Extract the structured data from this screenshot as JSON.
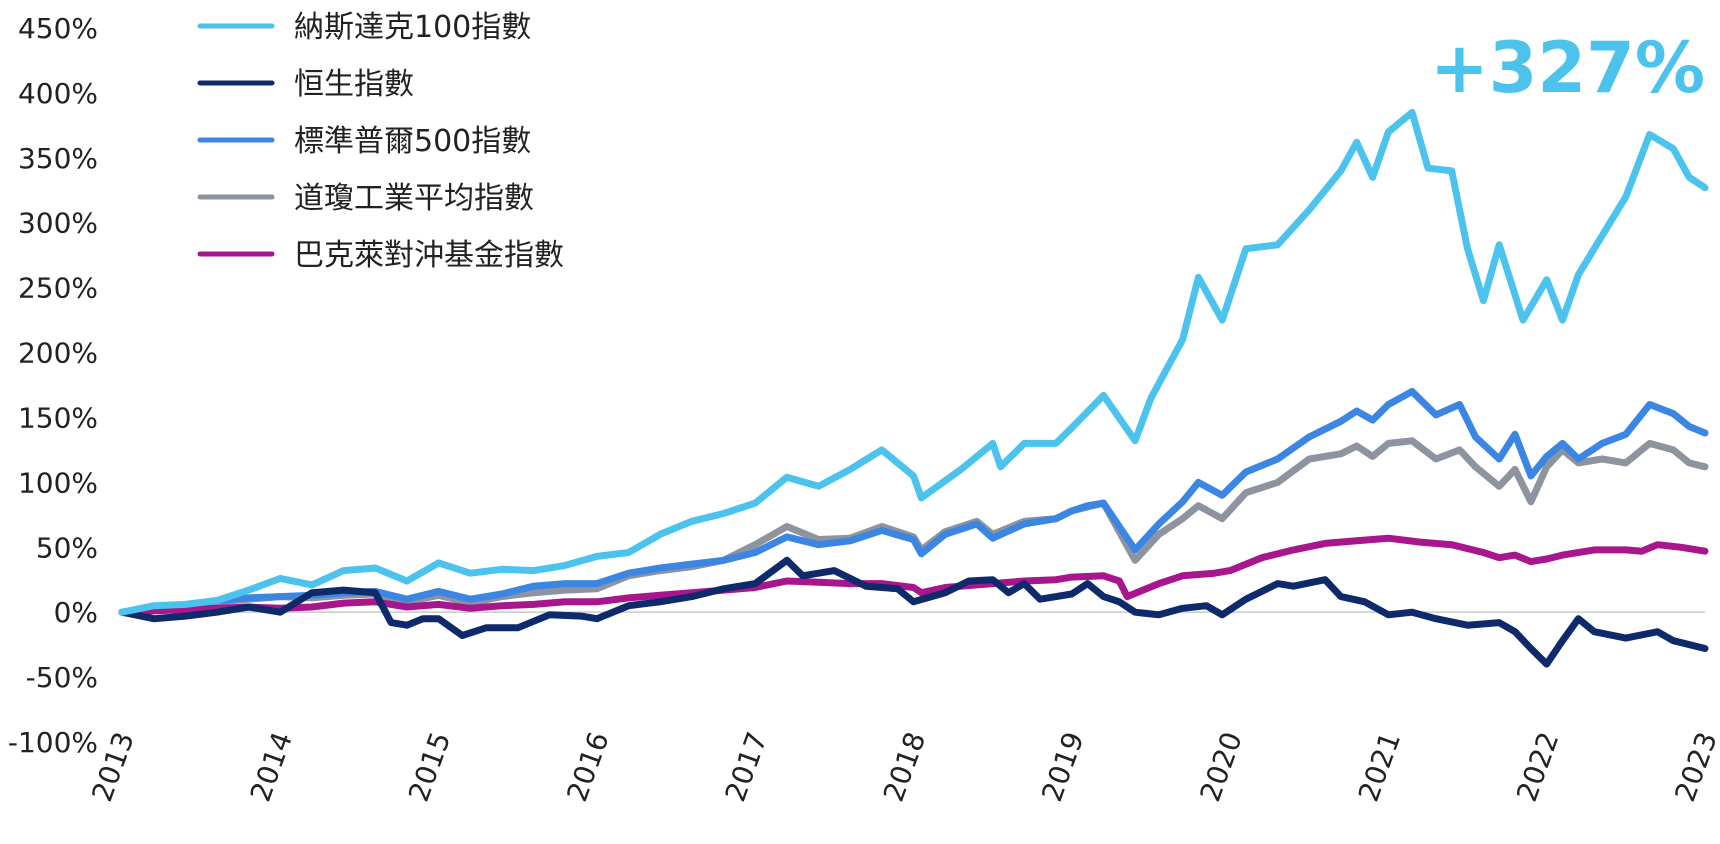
{
  "chart_data": {
    "type": "line",
    "title": "",
    "xlabel": "",
    "ylabel": "",
    "ylim": [
      -100,
      450
    ],
    "xlim": [
      2013,
      2023
    ],
    "y_ticks": [
      "450%",
      "400%",
      "350%",
      "300%",
      "250%",
      "200%",
      "150%",
      "100%",
      "50%",
      "0%",
      "-50%",
      "-100%"
    ],
    "x_ticks": [
      "2013",
      "2014",
      "2015",
      "2016",
      "2017",
      "2018",
      "2019",
      "2020",
      "2021",
      "2022",
      "2023"
    ],
    "annotation": "+327%",
    "legend_location": "top-left",
    "series": [
      {
        "name": "納斯達克100指數",
        "color": "#4CC3ED",
        "points": [
          [
            2013.0,
            0
          ],
          [
            2013.2,
            5
          ],
          [
            2013.4,
            6
          ],
          [
            2013.6,
            9
          ],
          [
            2013.8,
            17
          ],
          [
            2014.0,
            26
          ],
          [
            2014.2,
            21
          ],
          [
            2014.4,
            32
          ],
          [
            2014.6,
            34
          ],
          [
            2014.8,
            24
          ],
          [
            2015.0,
            38
          ],
          [
            2015.2,
            30
          ],
          [
            2015.4,
            33
          ],
          [
            2015.6,
            32
          ],
          [
            2015.8,
            36
          ],
          [
            2016.0,
            43
          ],
          [
            2016.2,
            46
          ],
          [
            2016.4,
            60
          ],
          [
            2016.6,
            70
          ],
          [
            2016.8,
            76
          ],
          [
            2017.0,
            84
          ],
          [
            2017.2,
            104
          ],
          [
            2017.4,
            97
          ],
          [
            2017.6,
            110
          ],
          [
            2017.8,
            125
          ],
          [
            2018.0,
            105
          ],
          [
            2018.05,
            88
          ],
          [
            2018.3,
            110
          ],
          [
            2018.5,
            130
          ],
          [
            2018.55,
            112
          ],
          [
            2018.7,
            130
          ],
          [
            2018.9,
            130
          ],
          [
            2019.0,
            142
          ],
          [
            2019.2,
            167
          ],
          [
            2019.4,
            132
          ],
          [
            2019.5,
            165
          ],
          [
            2019.7,
            210
          ],
          [
            2019.8,
            258
          ],
          [
            2019.95,
            225
          ],
          [
            2020.1,
            280
          ],
          [
            2020.3,
            283
          ],
          [
            2020.5,
            310
          ],
          [
            2020.7,
            340
          ],
          [
            2020.8,
            362
          ],
          [
            2020.9,
            335
          ],
          [
            2021.0,
            370
          ],
          [
            2021.15,
            385
          ],
          [
            2021.25,
            342
          ],
          [
            2021.4,
            340
          ],
          [
            2021.5,
            280
          ],
          [
            2021.6,
            240
          ],
          [
            2021.7,
            283
          ],
          [
            2021.85,
            225
          ],
          [
            2022.0,
            256
          ],
          [
            2022.1,
            225
          ],
          [
            2022.2,
            260
          ],
          [
            2022.35,
            290
          ],
          [
            2022.5,
            320
          ],
          [
            2022.65,
            368
          ],
          [
            2022.8,
            357
          ],
          [
            2022.9,
            335
          ],
          [
            2023.0,
            327
          ]
        ]
      },
      {
        "name": "恒生指數",
        "color": "#0F2A6B",
        "points": [
          [
            2013.0,
            0
          ],
          [
            2013.2,
            -5
          ],
          [
            2013.4,
            -3
          ],
          [
            2013.6,
            0
          ],
          [
            2013.8,
            4
          ],
          [
            2014.0,
            0
          ],
          [
            2014.2,
            15
          ],
          [
            2014.4,
            17
          ],
          [
            2014.6,
            15
          ],
          [
            2014.7,
            -8
          ],
          [
            2014.8,
            -10
          ],
          [
            2014.9,
            -5
          ],
          [
            2015.0,
            -5
          ],
          [
            2015.15,
            -18
          ],
          [
            2015.3,
            -12
          ],
          [
            2015.5,
            -12
          ],
          [
            2015.7,
            -2
          ],
          [
            2015.9,
            -3
          ],
          [
            2016.0,
            -5
          ],
          [
            2016.2,
            5
          ],
          [
            2016.4,
            8
          ],
          [
            2016.6,
            12
          ],
          [
            2016.8,
            18
          ],
          [
            2017.0,
            22
          ],
          [
            2017.2,
            40
          ],
          [
            2017.3,
            28
          ],
          [
            2017.5,
            32
          ],
          [
            2017.7,
            20
          ],
          [
            2017.9,
            18
          ],
          [
            2018.0,
            8
          ],
          [
            2018.2,
            15
          ],
          [
            2018.35,
            24
          ],
          [
            2018.5,
            25
          ],
          [
            2018.6,
            15
          ],
          [
            2018.7,
            22
          ],
          [
            2018.8,
            10
          ],
          [
            2019.0,
            14
          ],
          [
            2019.1,
            22
          ],
          [
            2019.2,
            12
          ],
          [
            2019.3,
            8
          ],
          [
            2019.4,
            0
          ],
          [
            2019.55,
            -2
          ],
          [
            2019.7,
            3
          ],
          [
            2019.85,
            5
          ],
          [
            2019.95,
            -2
          ],
          [
            2020.1,
            10
          ],
          [
            2020.3,
            22
          ],
          [
            2020.4,
            20
          ],
          [
            2020.6,
            25
          ],
          [
            2020.7,
            12
          ],
          [
            2020.85,
            8
          ],
          [
            2021.0,
            -2
          ],
          [
            2021.15,
            0
          ],
          [
            2021.3,
            -5
          ],
          [
            2021.5,
            -10
          ],
          [
            2021.7,
            -8
          ],
          [
            2021.8,
            -15
          ],
          [
            2021.9,
            -28
          ],
          [
            2022.0,
            -40
          ],
          [
            2022.1,
            -22
          ],
          [
            2022.2,
            -5
          ],
          [
            2022.3,
            -15
          ],
          [
            2022.5,
            -20
          ],
          [
            2022.7,
            -15
          ],
          [
            2022.8,
            -22
          ],
          [
            2023.0,
            -28
          ]
        ]
      },
      {
        "name": "標準普爾500指數",
        "color": "#3C86E3",
        "points": [
          [
            2013.0,
            0
          ],
          [
            2013.2,
            3
          ],
          [
            2013.4,
            5
          ],
          [
            2013.6,
            9
          ],
          [
            2013.8,
            11
          ],
          [
            2014.0,
            12
          ],
          [
            2014.2,
            13
          ],
          [
            2014.4,
            15
          ],
          [
            2014.6,
            16
          ],
          [
            2014.8,
            10
          ],
          [
            2015.0,
            16
          ],
          [
            2015.2,
            10
          ],
          [
            2015.4,
            14
          ],
          [
            2015.6,
            20
          ],
          [
            2015.8,
            22
          ],
          [
            2016.0,
            22
          ],
          [
            2016.2,
            30
          ],
          [
            2016.4,
            34
          ],
          [
            2016.6,
            37
          ],
          [
            2016.8,
            40
          ],
          [
            2017.0,
            46
          ],
          [
            2017.2,
            58
          ],
          [
            2017.4,
            52
          ],
          [
            2017.6,
            55
          ],
          [
            2017.8,
            63
          ],
          [
            2018.0,
            56
          ],
          [
            2018.05,
            45
          ],
          [
            2018.2,
            60
          ],
          [
            2018.4,
            68
          ],
          [
            2018.5,
            57
          ],
          [
            2018.7,
            68
          ],
          [
            2018.9,
            72
          ],
          [
            2019.0,
            78
          ],
          [
            2019.1,
            82
          ],
          [
            2019.2,
            84
          ],
          [
            2019.4,
            48
          ],
          [
            2019.55,
            68
          ],
          [
            2019.7,
            85
          ],
          [
            2019.8,
            100
          ],
          [
            2019.95,
            90
          ],
          [
            2020.1,
            108
          ],
          [
            2020.3,
            118
          ],
          [
            2020.5,
            135
          ],
          [
            2020.7,
            147
          ],
          [
            2020.8,
            155
          ],
          [
            2020.9,
            148
          ],
          [
            2021.0,
            160
          ],
          [
            2021.15,
            170
          ],
          [
            2021.3,
            152
          ],
          [
            2021.45,
            160
          ],
          [
            2021.55,
            135
          ],
          [
            2021.7,
            118
          ],
          [
            2021.8,
            137
          ],
          [
            2021.9,
            105
          ],
          [
            2022.0,
            120
          ],
          [
            2022.1,
            130
          ],
          [
            2022.2,
            118
          ],
          [
            2022.35,
            130
          ],
          [
            2022.5,
            137
          ],
          [
            2022.65,
            160
          ],
          [
            2022.8,
            153
          ],
          [
            2022.9,
            143
          ],
          [
            2023.0,
            138
          ]
        ]
      },
      {
        "name": "道瓊工業平均指數",
        "color": "#8D949F",
        "points": [
          [
            2013.0,
            0
          ],
          [
            2013.2,
            3
          ],
          [
            2013.4,
            5
          ],
          [
            2013.6,
            8
          ],
          [
            2013.8,
            10
          ],
          [
            2014.0,
            12
          ],
          [
            2014.2,
            11
          ],
          [
            2014.4,
            13
          ],
          [
            2014.6,
            14
          ],
          [
            2014.8,
            8
          ],
          [
            2015.0,
            13
          ],
          [
            2015.2,
            7
          ],
          [
            2015.4,
            12
          ],
          [
            2015.6,
            15
          ],
          [
            2015.8,
            17
          ],
          [
            2016.0,
            18
          ],
          [
            2016.2,
            28
          ],
          [
            2016.4,
            32
          ],
          [
            2016.6,
            35
          ],
          [
            2016.8,
            40
          ],
          [
            2017.0,
            52
          ],
          [
            2017.2,
            66
          ],
          [
            2017.4,
            56
          ],
          [
            2017.6,
            57
          ],
          [
            2017.8,
            66
          ],
          [
            2018.0,
            58
          ],
          [
            2018.05,
            48
          ],
          [
            2018.2,
            62
          ],
          [
            2018.4,
            70
          ],
          [
            2018.5,
            60
          ],
          [
            2018.7,
            70
          ],
          [
            2018.9,
            72
          ],
          [
            2019.0,
            78
          ],
          [
            2019.2,
            84
          ],
          [
            2019.4,
            40
          ],
          [
            2019.55,
            60
          ],
          [
            2019.7,
            72
          ],
          [
            2019.8,
            82
          ],
          [
            2019.95,
            72
          ],
          [
            2020.1,
            92
          ],
          [
            2020.3,
            100
          ],
          [
            2020.5,
            118
          ],
          [
            2020.7,
            122
          ],
          [
            2020.8,
            128
          ],
          [
            2020.9,
            120
          ],
          [
            2021.0,
            130
          ],
          [
            2021.15,
            132
          ],
          [
            2021.3,
            118
          ],
          [
            2021.45,
            125
          ],
          [
            2021.55,
            112
          ],
          [
            2021.7,
            97
          ],
          [
            2021.8,
            110
          ],
          [
            2021.9,
            85
          ],
          [
            2022.0,
            112
          ],
          [
            2022.1,
            125
          ],
          [
            2022.2,
            115
          ],
          [
            2022.35,
            118
          ],
          [
            2022.5,
            115
          ],
          [
            2022.65,
            130
          ],
          [
            2022.8,
            125
          ],
          [
            2022.9,
            115
          ],
          [
            2023.0,
            112
          ]
        ]
      },
      {
        "name": "巴克萊對沖基金指數",
        "color": "#A7168C",
        "points": [
          [
            2013.0,
            0
          ],
          [
            2013.2,
            1
          ],
          [
            2013.4,
            2
          ],
          [
            2013.6,
            3
          ],
          [
            2013.8,
            4
          ],
          [
            2014.0,
            3
          ],
          [
            2014.2,
            4
          ],
          [
            2014.4,
            7
          ],
          [
            2014.6,
            8
          ],
          [
            2014.8,
            4
          ],
          [
            2015.0,
            6
          ],
          [
            2015.2,
            3
          ],
          [
            2015.4,
            5
          ],
          [
            2015.6,
            6
          ],
          [
            2015.8,
            8
          ],
          [
            2016.0,
            8
          ],
          [
            2016.2,
            11
          ],
          [
            2016.4,
            13
          ],
          [
            2016.6,
            15
          ],
          [
            2016.8,
            17
          ],
          [
            2017.0,
            19
          ],
          [
            2017.2,
            24
          ],
          [
            2017.4,
            23
          ],
          [
            2017.6,
            22
          ],
          [
            2017.8,
            22
          ],
          [
            2018.0,
            19
          ],
          [
            2018.05,
            15
          ],
          [
            2018.2,
            19
          ],
          [
            2018.4,
            21
          ],
          [
            2018.5,
            22
          ],
          [
            2018.7,
            24
          ],
          [
            2018.9,
            25
          ],
          [
            2019.0,
            27
          ],
          [
            2019.2,
            28
          ],
          [
            2019.3,
            24
          ],
          [
            2019.35,
            12
          ],
          [
            2019.55,
            22
          ],
          [
            2019.7,
            28
          ],
          [
            2019.9,
            30
          ],
          [
            2020.0,
            32
          ],
          [
            2020.2,
            42
          ],
          [
            2020.4,
            48
          ],
          [
            2020.6,
            53
          ],
          [
            2020.8,
            55
          ],
          [
            2021.0,
            57
          ],
          [
            2021.2,
            54
          ],
          [
            2021.4,
            52
          ],
          [
            2021.6,
            46
          ],
          [
            2021.7,
            42
          ],
          [
            2021.8,
            44
          ],
          [
            2021.9,
            39
          ],
          [
            2022.0,
            41
          ],
          [
            2022.1,
            44
          ],
          [
            2022.3,
            48
          ],
          [
            2022.5,
            48
          ],
          [
            2022.6,
            47
          ],
          [
            2022.7,
            52
          ],
          [
            2022.85,
            50
          ],
          [
            2023.0,
            47
          ]
        ]
      }
    ]
  }
}
